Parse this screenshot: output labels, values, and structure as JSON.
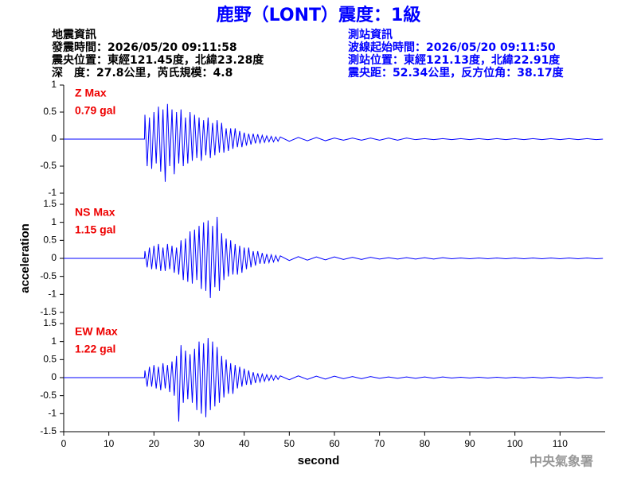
{
  "header": {
    "title": "鹿野（LONT）震度：1級",
    "info_left": [
      "地震資訊",
      "發震時間：2026/05/20 09:11:58",
      "震央位置：東經121.45度，北緯23.28度",
      "深　度：27.8公里，芮氏規模：4.8"
    ],
    "info_right": [
      "測站資訊",
      "波線起始時間：2026/05/20 09:11:50",
      "測站位置：東經121.13度，北緯22.91度",
      "震央距：52.34公里，反方位角：38.17度"
    ],
    "footer": "中央氣象署"
  },
  "chart_data": [
    {
      "type": "line",
      "label": "Z Max",
      "annotation": "0.79 gal",
      "color": "#0000ff",
      "label_color": "#ee0000",
      "xlim": [
        0,
        120
      ],
      "ylim": [
        -1,
        1
      ],
      "yticks": [
        -1,
        -0.5,
        0,
        0.5,
        1
      ],
      "x": [
        0,
        17.9,
        18,
        18.5,
        19,
        19.5,
        20,
        20.5,
        21,
        21.5,
        22,
        22.5,
        23,
        23.5,
        24,
        24.5,
        25,
        25.5,
        26,
        26.5,
        27,
        27.5,
        28,
        28.5,
        29,
        29.5,
        30,
        30.5,
        31,
        31.5,
        32,
        32.5,
        33,
        33.5,
        34,
        34.5,
        35,
        35.5,
        36,
        36.5,
        37,
        37.5,
        38,
        38.5,
        39,
        39.5,
        40,
        40.5,
        41,
        41.5,
        42,
        42.5,
        43,
        43.5,
        44,
        44.5,
        45,
        45.5,
        46,
        46.5,
        47,
        47.5,
        48,
        50,
        52,
        54,
        56,
        58,
        60,
        62,
        64,
        66,
        68,
        70,
        72,
        74,
        76,
        78,
        80,
        82,
        84,
        86,
        88,
        90,
        92,
        94,
        96,
        98,
        100,
        102,
        104,
        106,
        108,
        110,
        112,
        114,
        116,
        118,
        119.5
      ],
      "values": [
        0,
        0,
        0.45,
        -0.5,
        0.4,
        -0.55,
        0.5,
        -0.45,
        0.6,
        -0.6,
        0.55,
        -0.79,
        0.65,
        -0.5,
        0.55,
        -0.65,
        0.5,
        -0.45,
        0.55,
        -0.5,
        0.4,
        -0.45,
        0.5,
        -0.4,
        0.45,
        -0.35,
        0.4,
        -0.4,
        0.35,
        -0.3,
        0.4,
        -0.35,
        0.3,
        -0.3,
        0.35,
        -0.25,
        0.3,
        -0.25,
        0.2,
        -0.22,
        0.2,
        -0.18,
        0.2,
        -0.15,
        0.15,
        -0.15,
        0.12,
        -0.12,
        0.1,
        -0.1,
        0.1,
        -0.08,
        0.09,
        -0.07,
        0.07,
        -0.06,
        0.06,
        -0.05,
        0.05,
        -0.05,
        0.04,
        -0.04,
        0.04,
        -0.04,
        0.03,
        -0.03,
        0.03,
        -0.03,
        0.02,
        -0.02,
        0.02,
        -0.02,
        0.02,
        -0.02,
        0.02,
        -0.02,
        0.02,
        -0.01,
        0.01,
        -0.01,
        0.01,
        -0.01,
        0.01,
        -0.01,
        0.01,
        -0.01,
        0.01,
        -0.01,
        0.01,
        -0.01,
        0.01,
        -0.01,
        0.01,
        -0.01,
        0.01,
        -0.01,
        0.01,
        -0.01,
        0
      ]
    },
    {
      "type": "line",
      "label": "NS Max",
      "annotation": "1.15 gal",
      "color": "#0000ff",
      "label_color": "#ee0000",
      "ylabel": "acceleration",
      "xlim": [
        0,
        120
      ],
      "ylim": [
        -1.5,
        1.5
      ],
      "yticks": [
        -1.5,
        -1,
        -0.5,
        0,
        0.5,
        1,
        1.5
      ],
      "x": [
        0,
        17.9,
        18,
        18.5,
        19,
        19.5,
        20,
        20.5,
        21,
        21.5,
        22,
        22.5,
        23,
        23.5,
        24,
        24.5,
        25,
        25.5,
        26,
        26.5,
        27,
        27.5,
        28,
        28.5,
        29,
        29.5,
        30,
        30.5,
        31,
        31.5,
        32,
        32.5,
        33,
        33.5,
        34,
        34.5,
        35,
        35.5,
        36,
        36.5,
        37,
        37.5,
        38,
        38.5,
        39,
        39.5,
        40,
        40.5,
        41,
        41.5,
        42,
        42.5,
        43,
        43.5,
        44,
        44.5,
        45,
        45.5,
        46,
        46.5,
        47,
        47.5,
        48,
        50,
        52,
        54,
        56,
        58,
        60,
        62,
        64,
        66,
        68,
        70,
        72,
        74,
        76,
        78,
        80,
        82,
        84,
        86,
        88,
        90,
        92,
        94,
        96,
        98,
        100,
        102,
        104,
        106,
        108,
        110,
        112,
        114,
        116,
        118,
        119.5
      ],
      "values": [
        0,
        0,
        0.2,
        -0.25,
        0.3,
        -0.3,
        0.35,
        -0.3,
        0.4,
        -0.35,
        0.3,
        -0.35,
        0.4,
        -0.3,
        0.35,
        -0.4,
        0.3,
        -0.45,
        0.5,
        -0.6,
        0.55,
        -0.65,
        0.75,
        -0.7,
        0.8,
        -0.6,
        0.9,
        -0.85,
        1.0,
        -0.9,
        1.05,
        -1.1,
        0.9,
        -0.8,
        1.15,
        -0.9,
        0.7,
        -0.6,
        0.55,
        -0.5,
        0.5,
        -0.45,
        0.4,
        -0.45,
        0.35,
        -0.4,
        0.3,
        -0.3,
        0.3,
        -0.25,
        0.2,
        -0.2,
        0.2,
        -0.15,
        0.15,
        -0.15,
        0.12,
        -0.12,
        0.1,
        -0.1,
        0.08,
        -0.08,
        0.07,
        -0.06,
        0.05,
        -0.05,
        0.04,
        -0.04,
        0.04,
        -0.03,
        0.03,
        -0.03,
        0.03,
        -0.02,
        0.02,
        -0.02,
        0.02,
        -0.02,
        0.02,
        -0.02,
        0.02,
        -0.01,
        0.01,
        -0.01,
        0.01,
        -0.01,
        0.01,
        -0.01,
        0.01,
        -0.01,
        0.01,
        -0.01,
        0.01,
        -0.01,
        0.01,
        -0.01,
        0.01,
        -0.01,
        0
      ]
    },
    {
      "type": "line",
      "label": "EW Max",
      "annotation": "1.22 gal",
      "color": "#0000ff",
      "label_color": "#ee0000",
      "xlabel": "second",
      "xlim": [
        0,
        120
      ],
      "xticks": [
        0,
        10,
        20,
        30,
        40,
        50,
        60,
        70,
        80,
        90,
        100,
        110
      ],
      "ylim": [
        -1.5,
        1.5
      ],
      "yticks": [
        -1.5,
        -1,
        -0.5,
        0,
        0.5,
        1,
        1.5
      ],
      "x": [
        0,
        17.9,
        18,
        18.5,
        19,
        19.5,
        20,
        20.5,
        21,
        21.5,
        22,
        22.5,
        23,
        23.5,
        24,
        24.5,
        25,
        25.5,
        26,
        26.5,
        27,
        27.5,
        28,
        28.5,
        29,
        29.5,
        30,
        30.5,
        31,
        31.5,
        32,
        32.5,
        33,
        33.5,
        34,
        34.5,
        35,
        35.5,
        36,
        36.5,
        37,
        37.5,
        38,
        38.5,
        39,
        39.5,
        40,
        40.5,
        41,
        41.5,
        42,
        42.5,
        43,
        43.5,
        44,
        44.5,
        45,
        45.5,
        46,
        46.5,
        47,
        47.5,
        48,
        50,
        52,
        54,
        56,
        58,
        60,
        62,
        64,
        66,
        68,
        70,
        72,
        74,
        76,
        78,
        80,
        82,
        84,
        86,
        88,
        90,
        92,
        94,
        96,
        98,
        100,
        102,
        104,
        106,
        108,
        110,
        112,
        114,
        116,
        118,
        119.5
      ],
      "values": [
        0,
        0,
        0.2,
        -0.25,
        0.3,
        -0.25,
        0.35,
        -0.3,
        0.3,
        -0.35,
        0.4,
        -0.3,
        0.35,
        -0.4,
        0.45,
        -0.5,
        0.6,
        -1.22,
        0.9,
        -0.7,
        0.75,
        -0.6,
        0.65,
        -0.7,
        0.8,
        -0.9,
        1.0,
        -1.0,
        0.95,
        -1.1,
        1.1,
        -0.9,
        1.0,
        -0.8,
        0.85,
        -0.7,
        0.6,
        -0.55,
        0.5,
        -0.45,
        0.4,
        -0.45,
        0.35,
        -0.3,
        0.3,
        -0.25,
        0.25,
        -0.2,
        0.2,
        -0.2,
        0.15,
        -0.15,
        0.12,
        -0.12,
        0.1,
        -0.1,
        0.08,
        -0.08,
        0.07,
        -0.07,
        0.06,
        -0.05,
        0.05,
        -0.06,
        0.05,
        -0.05,
        0.04,
        -0.04,
        0.04,
        -0.03,
        0.03,
        -0.03,
        0.03,
        -0.02,
        0.02,
        -0.02,
        0.02,
        -0.02,
        0.02,
        -0.02,
        0.02,
        -0.01,
        0.01,
        -0.01,
        0.01,
        -0.01,
        0.01,
        -0.01,
        0.01,
        -0.01,
        0.01,
        -0.01,
        0.01,
        -0.01,
        0.01,
        -0.01,
        0.01,
        -0.01,
        0
      ]
    }
  ]
}
